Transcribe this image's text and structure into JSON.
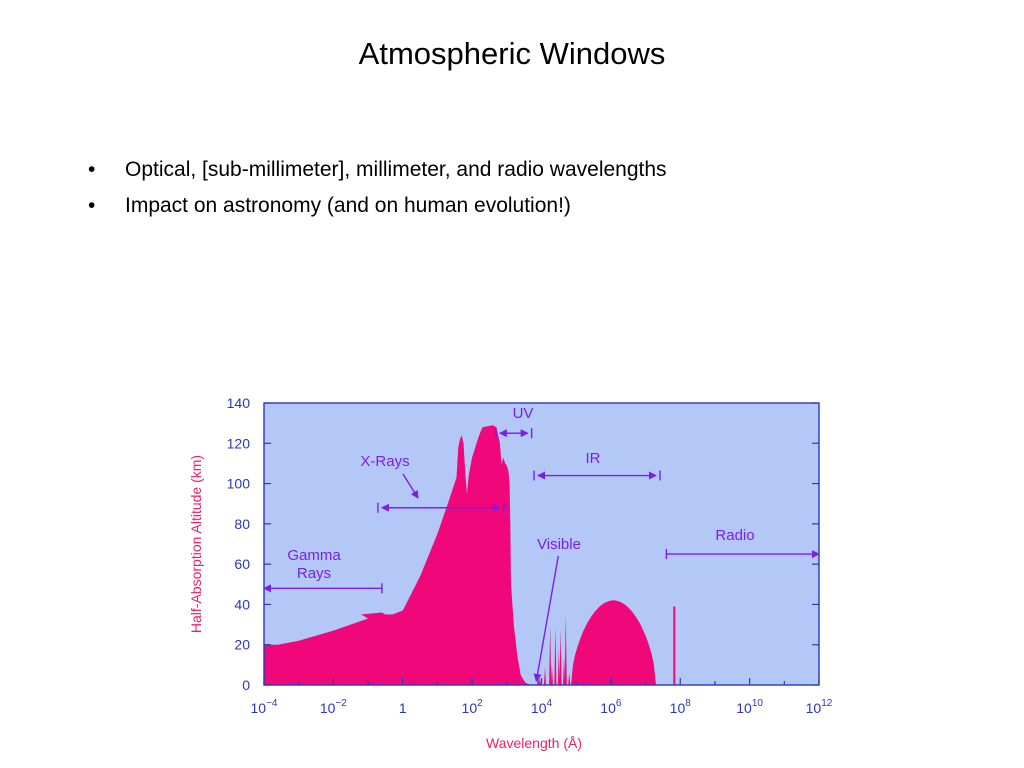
{
  "slide": {
    "title": "Atmospheric Windows",
    "bullets": [
      "Optical, [sub-millimeter], millimeter, and radio wavelengths",
      "Impact on astronomy (and on human evolution!)"
    ],
    "bullet_glyph": "•"
  },
  "chart_data": {
    "type": "area",
    "title": "",
    "xlabel": "Wavelength (Å)",
    "ylabel": "Half-Absorption Altitude (km)",
    "xscale": "log",
    "xlim_log10": [
      -4,
      12
    ],
    "ylim": [
      0,
      140
    ],
    "yticks": [
      0,
      20,
      40,
      60,
      80,
      100,
      120,
      140
    ],
    "xtick_labels": [
      {
        "base": "10",
        "exp": "−4"
      },
      {
        "base": "10",
        "exp": "−2"
      },
      {
        "base": "1",
        "exp": ""
      },
      {
        "base": "10",
        "exp": "2"
      },
      {
        "base": "10",
        "exp": "4"
      },
      {
        "base": "10",
        "exp": "6"
      },
      {
        "base": "10",
        "exp": "8"
      },
      {
        "base": "10",
        "exp": "10"
      },
      {
        "base": "10",
        "exp": "12"
      }
    ],
    "colors": {
      "fill": "#f0087a",
      "background": "#b4c8f8",
      "annotation": "#7c1ee6",
      "axis_text": "#2b38b8",
      "axis_label": "#e3226e"
    },
    "series": [
      {
        "x_log10": [
          -4,
          -3.6,
          -3,
          -2,
          -1,
          -1.2,
          -0.6,
          -0.5,
          -0.3,
          0,
          0.5,
          1,
          1.3,
          1.55,
          1.6,
          1.65,
          1.7,
          1.75,
          1.8,
          1.85,
          1.9,
          2,
          2.2,
          2.3,
          2.6,
          2.7,
          2.8,
          2.85,
          2.9,
          2.95,
          3,
          3.05,
          3.08,
          3.1,
          3.12,
          3.2,
          3.3,
          3.4,
          3.5,
          3.55,
          3.6,
          3.62,
          3.64,
          3.66,
          3.68,
          3.7,
          3.72
        ],
        "y": [
          20,
          20,
          22,
          27,
          33,
          35,
          36,
          35,
          35,
          37,
          54,
          75,
          90,
          103,
          118,
          122,
          124,
          120,
          106,
          95,
          104,
          113,
          124,
          128,
          129,
          128,
          120,
          109,
          113,
          110,
          109,
          106,
          100,
          80,
          50,
          30,
          15,
          5,
          2,
          1,
          0.7,
          0.5,
          0.4,
          0.3,
          0.2,
          0.1,
          0
        ]
      }
    ],
    "regions": [
      {
        "name": "Gamma Rays",
        "label_lines": [
          "Gamma",
          "Rays"
        ],
        "from_log10": -4,
        "to_log10": -0.6,
        "y": 48,
        "arrow": "left"
      },
      {
        "name": "X-Rays",
        "label_lines": [
          "X-Rays"
        ],
        "from_log10": -0.6,
        "to_log10": 2.8,
        "y": 88,
        "arrow": "both"
      },
      {
        "name": "UV",
        "label_lines": [
          "UV"
        ],
        "from_log10": 2.8,
        "to_log10": 3.6,
        "y": 125,
        "arrow": "both"
      },
      {
        "name": "IR",
        "label_lines": [
          "IR"
        ],
        "from_log10": 3.9,
        "to_log10": 7.3,
        "y": 104,
        "arrow": "both"
      },
      {
        "name": "Radio",
        "label_lines": [
          "Radio"
        ],
        "from_log10": 7.6,
        "to_log10": 12,
        "y": 65,
        "arrow": "right"
      },
      {
        "name": "Visible",
        "label_lines": [
          "Visible"
        ],
        "at_log10": 3.85,
        "y": 2,
        "arrow": "pointer"
      }
    ]
  }
}
